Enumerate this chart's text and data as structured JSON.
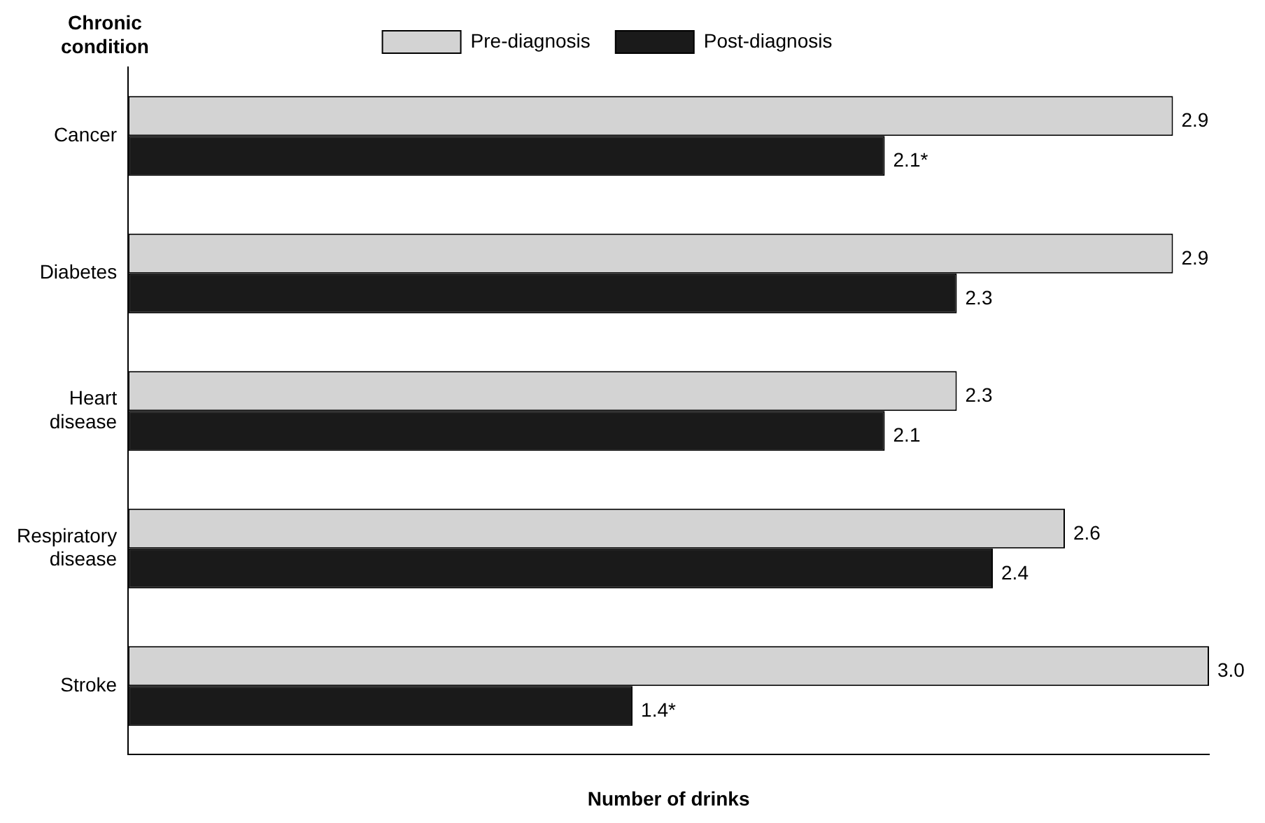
{
  "chart_data": {
    "type": "bar",
    "orientation": "horizontal",
    "ylabel": "Chronic condition",
    "xlabel": "Number of drinks",
    "categories": [
      "Cancer",
      "Diabetes",
      "Heart disease",
      "Respiratory disease",
      "Stroke"
    ],
    "series": [
      {
        "name": "Pre-diagnosis",
        "color": "#d3d3d3",
        "values": [
          2.9,
          2.9,
          2.3,
          2.6,
          3.0
        ],
        "value_labels": [
          "2.9",
          "2.9",
          "2.3",
          "2.6",
          "3.0"
        ]
      },
      {
        "name": "Post-diagnosis",
        "color": "#1a1a1a",
        "values": [
          2.1,
          2.3,
          2.1,
          2.4,
          1.4
        ],
        "value_labels": [
          "2.1*",
          "2.3",
          "2.1",
          "2.4",
          "1.4*"
        ]
      }
    ],
    "data_labels": true,
    "legend": "top",
    "grid": false,
    "tick_labels": "y"
  }
}
